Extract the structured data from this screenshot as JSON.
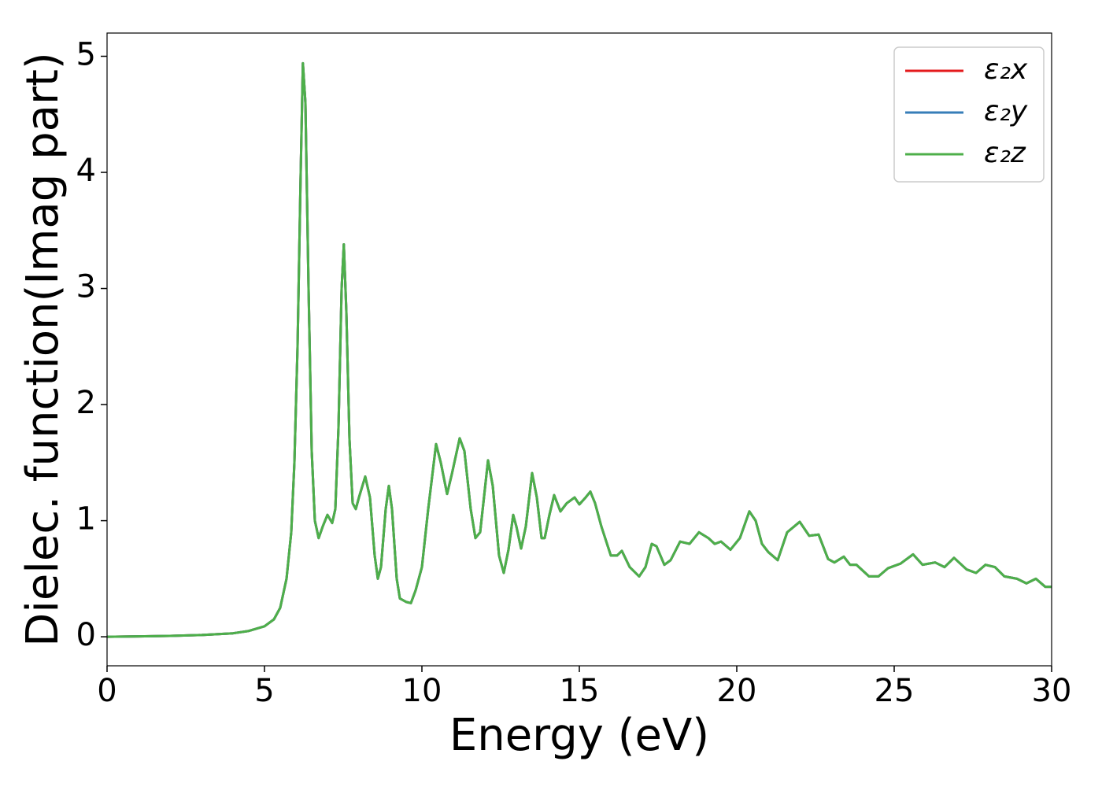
{
  "chart_data": {
    "type": "line",
    "xlabel": "Energy (eV)",
    "ylabel": "Dielec. function(Imag part)",
    "x": [
      0,
      1,
      2,
      3,
      4,
      4.5,
      5,
      5.3,
      5.5,
      5.7,
      5.85,
      5.95,
      6.05,
      6.15,
      6.22,
      6.3,
      6.4,
      6.5,
      6.6,
      6.72,
      6.85,
      7.0,
      7.15,
      7.25,
      7.35,
      7.45,
      7.52,
      7.6,
      7.7,
      7.8,
      7.9,
      8.0,
      8.2,
      8.35,
      8.5,
      8.6,
      8.7,
      8.85,
      8.95,
      9.05,
      9.2,
      9.3,
      9.5,
      9.65,
      9.8,
      10.0,
      10.2,
      10.45,
      10.6,
      10.8,
      10.95,
      11.2,
      11.35,
      11.55,
      11.7,
      11.85,
      12.1,
      12.25,
      12.45,
      12.6,
      12.75,
      12.9,
      13.0,
      13.15,
      13.3,
      13.5,
      13.65,
      13.8,
      13.9,
      14.05,
      14.2,
      14.4,
      14.6,
      14.85,
      15.0,
      15.2,
      15.35,
      15.5,
      15.7,
      16.0,
      16.2,
      16.35,
      16.6,
      16.9,
      17.1,
      17.3,
      17.45,
      17.7,
      17.9,
      18.2,
      18.5,
      18.8,
      19.1,
      19.3,
      19.5,
      19.8,
      20.1,
      20.4,
      20.6,
      20.8,
      21.0,
      21.3,
      21.6,
      22.0,
      22.3,
      22.6,
      22.9,
      23.1,
      23.4,
      23.6,
      23.8,
      24.2,
      24.5,
      24.8,
      25.2,
      25.6,
      25.9,
      26.3,
      26.6,
      26.9,
      27.3,
      27.6,
      27.9,
      28.2,
      28.5,
      28.9,
      29.2,
      29.5,
      29.8,
      30
    ],
    "series": [
      {
        "name": "ε₂x",
        "color": "#e41a1c",
        "values": [
          0,
          0.003,
          0.008,
          0.015,
          0.03,
          0.05,
          0.09,
          0.15,
          0.25,
          0.5,
          0.9,
          1.5,
          2.5,
          4.0,
          4.94,
          4.6,
          3.0,
          1.6,
          1.0,
          0.85,
          0.95,
          1.05,
          0.98,
          1.1,
          1.8,
          3.0,
          3.38,
          2.8,
          1.7,
          1.15,
          1.1,
          1.2,
          1.38,
          1.2,
          0.7,
          0.5,
          0.6,
          1.1,
          1.3,
          1.1,
          0.5,
          0.33,
          0.3,
          0.29,
          0.4,
          0.6,
          1.1,
          1.66,
          1.5,
          1.23,
          1.4,
          1.71,
          1.6,
          1.1,
          0.85,
          0.9,
          1.52,
          1.3,
          0.7,
          0.55,
          0.75,
          1.05,
          0.95,
          0.76,
          0.95,
          1.41,
          1.2,
          0.85,
          0.85,
          1.05,
          1.22,
          1.08,
          1.15,
          1.2,
          1.14,
          1.2,
          1.25,
          1.15,
          0.95,
          0.7,
          0.7,
          0.74,
          0.6,
          0.52,
          0.6,
          0.8,
          0.78,
          0.62,
          0.66,
          0.82,
          0.8,
          0.9,
          0.85,
          0.8,
          0.82,
          0.75,
          0.85,
          1.08,
          1.0,
          0.8,
          0.73,
          0.66,
          0.9,
          0.99,
          0.87,
          0.88,
          0.67,
          0.64,
          0.69,
          0.62,
          0.62,
          0.52,
          0.52,
          0.59,
          0.63,
          0.71,
          0.62,
          0.64,
          0.6,
          0.68,
          0.58,
          0.55,
          0.62,
          0.6,
          0.52,
          0.5,
          0.46,
          0.5,
          0.43,
          0.43
        ]
      },
      {
        "name": "ε₂y",
        "color": "#377eb8",
        "values": [
          0,
          0.003,
          0.008,
          0.015,
          0.03,
          0.05,
          0.09,
          0.15,
          0.25,
          0.5,
          0.9,
          1.5,
          2.5,
          4.0,
          4.94,
          4.6,
          3.0,
          1.6,
          1.0,
          0.85,
          0.95,
          1.05,
          0.98,
          1.1,
          1.8,
          3.0,
          3.38,
          2.8,
          1.7,
          1.15,
          1.1,
          1.2,
          1.38,
          1.2,
          0.7,
          0.5,
          0.6,
          1.1,
          1.3,
          1.1,
          0.5,
          0.33,
          0.3,
          0.29,
          0.4,
          0.6,
          1.1,
          1.66,
          1.5,
          1.23,
          1.4,
          1.71,
          1.6,
          1.1,
          0.85,
          0.9,
          1.52,
          1.3,
          0.7,
          0.55,
          0.75,
          1.05,
          0.95,
          0.76,
          0.95,
          1.41,
          1.2,
          0.85,
          0.85,
          1.05,
          1.22,
          1.08,
          1.15,
          1.2,
          1.14,
          1.2,
          1.25,
          1.15,
          0.95,
          0.7,
          0.7,
          0.74,
          0.6,
          0.52,
          0.6,
          0.8,
          0.78,
          0.62,
          0.66,
          0.82,
          0.8,
          0.9,
          0.85,
          0.8,
          0.82,
          0.75,
          0.85,
          1.08,
          1.0,
          0.8,
          0.73,
          0.66,
          0.9,
          0.99,
          0.87,
          0.88,
          0.67,
          0.64,
          0.69,
          0.62,
          0.62,
          0.52,
          0.52,
          0.59,
          0.63,
          0.71,
          0.62,
          0.64,
          0.6,
          0.68,
          0.58,
          0.55,
          0.62,
          0.6,
          0.52,
          0.5,
          0.46,
          0.5,
          0.43,
          0.43
        ]
      },
      {
        "name": "ε₂z",
        "color": "#4daf4a",
        "values": [
          0,
          0.003,
          0.008,
          0.015,
          0.03,
          0.05,
          0.09,
          0.15,
          0.25,
          0.5,
          0.9,
          1.5,
          2.5,
          4.0,
          4.94,
          4.6,
          3.0,
          1.6,
          1.0,
          0.85,
          0.95,
          1.05,
          0.98,
          1.1,
          1.8,
          3.0,
          3.38,
          2.8,
          1.7,
          1.15,
          1.1,
          1.2,
          1.38,
          1.2,
          0.7,
          0.5,
          0.6,
          1.1,
          1.3,
          1.1,
          0.5,
          0.33,
          0.3,
          0.29,
          0.4,
          0.6,
          1.1,
          1.66,
          1.5,
          1.23,
          1.4,
          1.71,
          1.6,
          1.1,
          0.85,
          0.9,
          1.52,
          1.3,
          0.7,
          0.55,
          0.75,
          1.05,
          0.95,
          0.76,
          0.95,
          1.41,
          1.2,
          0.85,
          0.85,
          1.05,
          1.22,
          1.08,
          1.15,
          1.2,
          1.14,
          1.2,
          1.25,
          1.15,
          0.95,
          0.7,
          0.7,
          0.74,
          0.6,
          0.52,
          0.6,
          0.8,
          0.78,
          0.62,
          0.66,
          0.82,
          0.8,
          0.9,
          0.85,
          0.8,
          0.82,
          0.75,
          0.85,
          1.08,
          1.0,
          0.8,
          0.73,
          0.66,
          0.9,
          0.99,
          0.87,
          0.88,
          0.67,
          0.64,
          0.69,
          0.62,
          0.62,
          0.52,
          0.52,
          0.59,
          0.63,
          0.71,
          0.62,
          0.64,
          0.6,
          0.68,
          0.58,
          0.55,
          0.62,
          0.6,
          0.52,
          0.5,
          0.46,
          0.5,
          0.43,
          0.43
        ]
      }
    ],
    "xlim": [
      0,
      30
    ],
    "xticks": [
      0,
      5,
      10,
      15,
      20,
      25,
      30
    ],
    "ylim": [
      -0.25,
      5.2
    ],
    "yticks": [
      0,
      1,
      2,
      3,
      4,
      5
    ],
    "grid": false,
    "legend": "upper right"
  }
}
